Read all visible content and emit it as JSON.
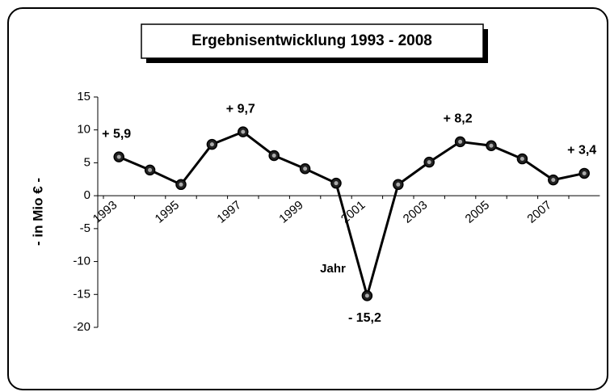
{
  "chart_data": {
    "type": "line",
    "title": "Ergebnisentwicklung 1993 - 2008",
    "y_label": "- in Mio € -",
    "x_label": "Jahr",
    "categories": [
      "1993",
      null,
      "1995",
      null,
      "1997",
      null,
      "1999",
      null,
      "2001",
      null,
      "2003",
      null,
      "2005",
      null,
      "2007",
      null
    ],
    "series": [
      {
        "name": null,
        "color": "#000000",
        "values": [
          5.9,
          3.9,
          1.7,
          7.8,
          9.7,
          6.1,
          4.1,
          1.9,
          -15.2,
          1.7,
          5.1,
          8.2,
          7.6,
          5.6,
          2.4,
          3.4
        ],
        "value_labels": [
          "+ 5,9",
          null,
          null,
          null,
          "+ 9,7",
          null,
          null,
          null,
          "- 15,2",
          null,
          null,
          "+ 8,2",
          null,
          null,
          null,
          "+ 3,4"
        ]
      }
    ],
    "ylim": [
      -20,
      15
    ],
    "yticks": [
      -20,
      -15,
      -10,
      -5,
      0,
      5,
      10,
      15
    ]
  }
}
